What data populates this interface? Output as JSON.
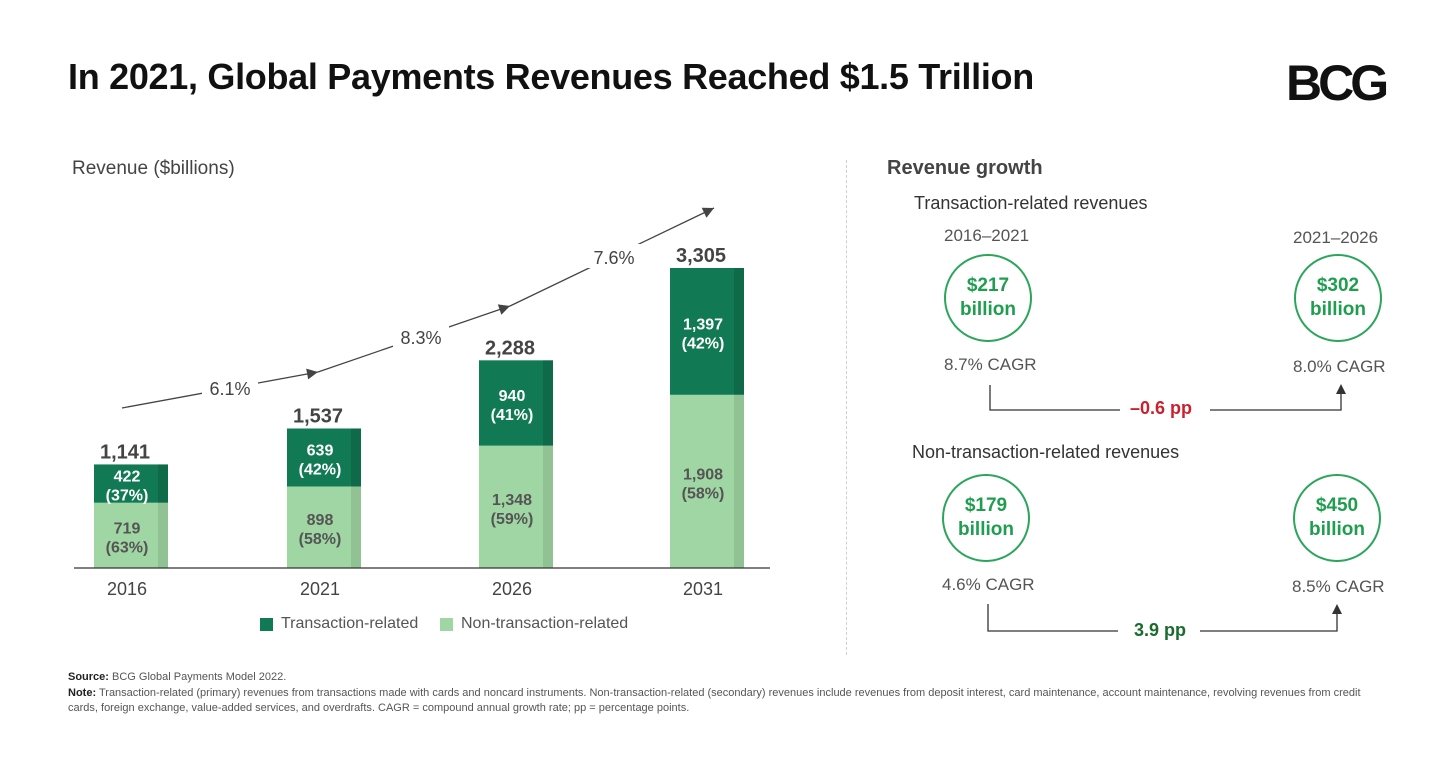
{
  "title": "In 2021, Global Payments Revenues Reached $1.5 Trillion",
  "logo_text": "BCG",
  "colors": {
    "transaction": "#117a54",
    "non_transaction": "#9fd6a3",
    "circle": "#2aa55a",
    "negative": "#cc1f2d",
    "positive": "#1b6b2f"
  },
  "chart_data": {
    "type": "bar",
    "stacked": true,
    "ylabel": "Revenue ($billions)",
    "categories": [
      "2016",
      "2021",
      "2026",
      "2031"
    ],
    "totals": [
      "1,141",
      "1,537",
      "2,288",
      "3,305"
    ],
    "total_values": [
      1141,
      1537,
      2288,
      3305
    ],
    "series": [
      {
        "name": "Non-transaction-related",
        "values": [
          719,
          898,
          1348,
          1908
        ],
        "labels": [
          "719",
          "898",
          "1,348",
          "1,908"
        ],
        "shares": [
          "(63%)",
          "(58%)",
          "(59%)",
          "(58%)"
        ]
      },
      {
        "name": "Transaction-related",
        "values": [
          422,
          639,
          940,
          1397
        ],
        "labels": [
          "422",
          "639",
          "940",
          "1,397"
        ],
        "shares": [
          "(37%)",
          "(42%)",
          "(41%)",
          "(42%)"
        ]
      }
    ],
    "growth_rates": [
      "6.1%",
      "8.3%",
      "7.6%"
    ],
    "legend": [
      "Transaction-related",
      "Non-transaction-related"
    ],
    "legend_position": "bottom",
    "grid": false
  },
  "revenue_growth": {
    "title": "Revenue growth",
    "transaction": {
      "label": "Transaction-related revenues",
      "period_a": "2016–2021",
      "period_b": "2021–2026",
      "value_a": [
        "$217",
        "billion"
      ],
      "value_b": [
        "$302",
        "billion"
      ],
      "cagr_a": "8.7% CAGR",
      "cagr_b": "8.0% CAGR",
      "diff": "–0.6 pp"
    },
    "non_transaction": {
      "label": "Non-transaction-related revenues",
      "value_a": [
        "$179",
        "billion"
      ],
      "value_b": [
        "$450",
        "billion"
      ],
      "cagr_a": "4.6% CAGR",
      "cagr_b": "8.5% CAGR",
      "diff": "3.9 pp"
    }
  },
  "footer": {
    "source_label": "Source:",
    "source_text": "BCG Global Payments Model 2022.",
    "note_label": "Note:",
    "note_text": "Transaction-related (primary) revenues from transactions made with cards and noncard instruments. Non-transaction-related (secondary) revenues include revenues from deposit interest, card maintenance, account maintenance, revolving revenues from credit cards, foreign exchange, value-added services, and overdrafts. CAGR = compound annual growth rate; pp = percentage points."
  }
}
